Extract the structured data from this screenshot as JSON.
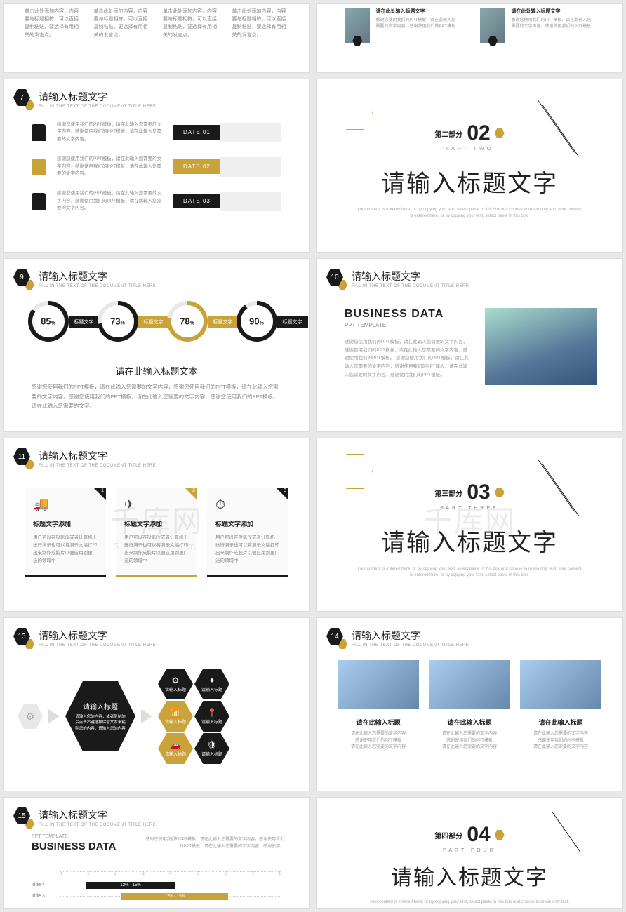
{
  "colors": {
    "accent": "#c9a339",
    "dark": "#1a1a1a",
    "grey": "#e8e8e8",
    "text": "#222",
    "muted": "#888"
  },
  "watermark": {
    "main": "千库网",
    "sub": "588ku.com"
  },
  "common": {
    "title_zh": "请输入标题文字",
    "title_en": "FILL IN THE TEXT OF THE DOCUMENT TITLE HERE"
  },
  "s5": {
    "col": "单击此处添加内容，内容要与标题相符，可以直接复制粘贴，要选择有用相关的发言点。"
  },
  "s6": {
    "h": "请在此处输入标题文字",
    "b": "感谢您使用我们的PPT模板，请在此输入您需要的文字内容，感谢使用我们的PPT模板"
  },
  "s7": {
    "num": "7",
    "rowtext": "感谢您使用我们的PPT模板，请在此输入您需要的文字内容，感谢使用我们的PPT模板，请在此输入您需要的文字内容。",
    "dates": [
      "DATE 01",
      "DATE 02",
      "DATE 03"
    ]
  },
  "sec2": {
    "pre": "第二部分",
    "num": "02",
    "part": "PART TWO",
    "title": "请输入标题文字",
    "desc": "your content is entered here, or by copying your text, select paste in this box and choose to retain only text. your content is entered here, or by copying your text, select paste in this box."
  },
  "s9": {
    "num": "9",
    "rings": [
      {
        "pct": 85,
        "color": "#1a1a1a",
        "label": "标题文字",
        "tag_color": "#1a1a1a"
      },
      {
        "pct": 73,
        "color": "#1a1a1a",
        "label": "标题文字",
        "tag_color": "#c9a339"
      },
      {
        "pct": 78,
        "color": "#c9a339",
        "label": "标题文字",
        "tag_color": "#c9a339"
      },
      {
        "pct": 90,
        "color": "#1a1a1a",
        "label": "标题文字",
        "tag_color": "#1a1a1a"
      }
    ],
    "sub": "请在此输入标题文本",
    "body": "感谢您使用我们的PPT模板，请在此输入您需要的文字内容，感谢您使用我们的PPT模板，请在此输入您需要的文字内容。感谢您使用我们的PPT模板，请在此输入您需要的文字内容，感谢您使用我们的PPT模板，请在此输入您需要的文字。"
  },
  "s10": {
    "num": "10",
    "h1": "BUSINESS DATA",
    "h2": "PPT TEMPLATE",
    "tx": "感谢您使用我们的PPT模板，请在此输入您需要的文字内容，感谢使用我们的PPT模板，请在此输入您需要的文字内容，感谢使用我们的PPT模板。\n\n感谢您使用我们的PPT模板，请在此输入您需要的文字内容，感谢使用我们的PPT模板，请在此输入您需要的文字内容，感谢使用我们的PPT模板。"
  },
  "s11": {
    "num": "11",
    "cards": [
      {
        "icon": "🚚",
        "h": "标题文字添加",
        "b": "用户可以在投影仪或者计算机上进行演示也可以将演示文稿打印出来制作成胶片以便应用到更广泛的领域中"
      },
      {
        "icon": "✈",
        "h": "标题文字添加",
        "b": "用户可以在投影仪或者计算机上进行演示也可以将演示文稿打印出来制作成胶片以便应用到更广泛的领域中"
      },
      {
        "icon": "⏱",
        "h": "标题文字添加",
        "b": "用户可以在投影仪或者计算机上进行演示也可以将演示文稿打印出来制作成胶片以便应用到更广泛的领域中"
      }
    ]
  },
  "sec3": {
    "pre": "第三部分",
    "num": "03",
    "part": "PART THREE",
    "title": "请输入标题文字",
    "desc": "your content is entered here, or by copying your text, select paste in this box and choose to retain only text. your content is entered here, or by copying your text, select paste in this box."
  },
  "s13": {
    "num": "13",
    "big": {
      "h": "请输入标题",
      "b": "请输入您的内容，或者复制的后点击右键选择保留文本来粘贴您的内容，请输入您的内容"
    },
    "small": [
      {
        "i": "⚙",
        "t": "请输入标题",
        "g": false
      },
      {
        "i": "✦",
        "t": "请输入标题",
        "g": false
      },
      {
        "i": "📶",
        "t": "请输入标题",
        "g": true
      },
      {
        "i": "📍",
        "t": "请输入标题",
        "g": false
      },
      {
        "i": "🚗",
        "t": "请输入标题",
        "g": true
      },
      {
        "i": "🛡",
        "t": "请输入标题",
        "g": false
      }
    ]
  },
  "s14": {
    "num": "14",
    "cols": [
      {
        "h": "请在此输入标题",
        "b": "请在此输入您需要的文字内容\n感谢使用我们的PPT模板\n请在此输入您需要的文字内容"
      },
      {
        "h": "请在此输入标题",
        "b": "请在此输入您需要的文字内容\n感谢使用我们的PPT模板\n请在此输入您需要的文字内容"
      },
      {
        "h": "请在此输入标题",
        "b": "请在此输入您需要的文字内容\n感谢使用我们的PPT模板\n请在此输入您需要的文字内容"
      }
    ]
  },
  "s15": {
    "num": "15",
    "p": "PPT TEMPLATE",
    "h": "BUSINESS DATA",
    "desc": "感谢您使用我们的PPT模板，请在此输入您需要的文字内容，感谢使用我们的PPT模板，请在此输入您需要的文字内容，感谢使用。",
    "scale_max": 8,
    "rows": [
      {
        "label": "Title 4",
        "start": 12,
        "width": 40,
        "text": "12% - 15%",
        "g": false
      },
      {
        "label": "Title 3",
        "start": 28,
        "width": 48,
        "text": "12% - 15%",
        "g": true
      }
    ]
  },
  "sec4": {
    "pre": "第四部分",
    "num": "04",
    "part": "PART FOUR",
    "title": "请输入标题文字",
    "desc": "your content is entered here, or by copying your text, select paste in this box and choose to retain only text."
  }
}
